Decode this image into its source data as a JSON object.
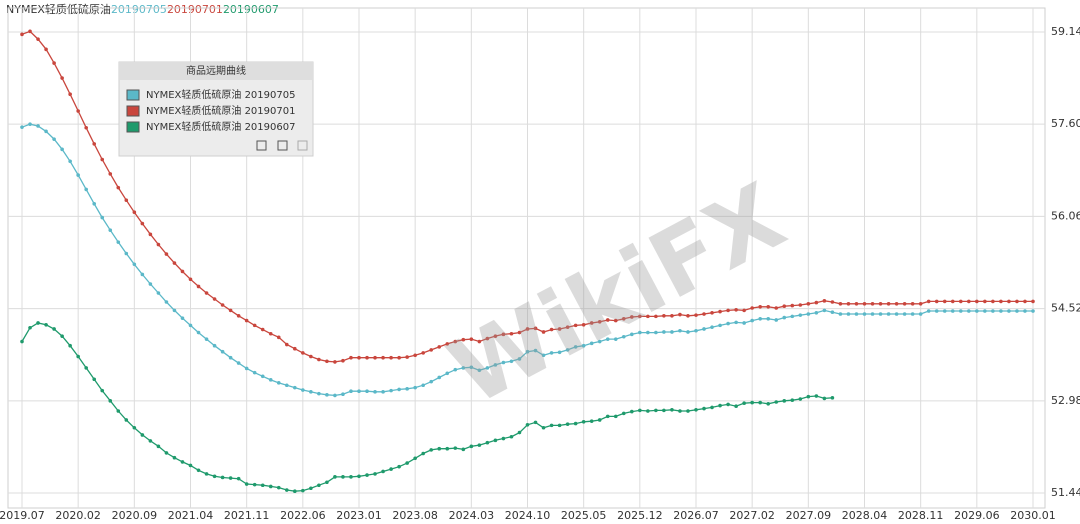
{
  "chart_data": {
    "type": "line",
    "header": {
      "product": "NYMEX轻质低硫原油",
      "dates": [
        "20190705",
        "20190701",
        "20190607"
      ]
    },
    "legend_title": "商品远期曲线",
    "watermark": "WikiFX",
    "categories": [
      "2019.07",
      null,
      null,
      null,
      null,
      null,
      null,
      "2020.02",
      null,
      null,
      null,
      null,
      null,
      null,
      "2020.09",
      null,
      null,
      null,
      null,
      null,
      null,
      "2021.04",
      null,
      null,
      null,
      null,
      null,
      null,
      "2021.11",
      null,
      null,
      null,
      null,
      null,
      null,
      "2022.06",
      null,
      null,
      null,
      null,
      null,
      null,
      "2023.01",
      null,
      null,
      null,
      null,
      null,
      null,
      "2023.08",
      null,
      null,
      null,
      null,
      null,
      null,
      "2024.03",
      null,
      null,
      null,
      null,
      null,
      null,
      "2024.10",
      null,
      null,
      null,
      null,
      null,
      null,
      "2025.05",
      null,
      null,
      null,
      null,
      null,
      null,
      "2025.12",
      null,
      null,
      null,
      null,
      null,
      null,
      "2026.07",
      null,
      null,
      null,
      null,
      null,
      null,
      "2027.02",
      null,
      null,
      null,
      null,
      null,
      null,
      "2027.09",
      null,
      null,
      null,
      null,
      null,
      null,
      "2028.04",
      null,
      null,
      null,
      null,
      null,
      null,
      "2028.11",
      null,
      null,
      null,
      null,
      null,
      null,
      "2029.06",
      null,
      null,
      null,
      null,
      null,
      null,
      "2030.01"
    ],
    "series": [
      {
        "name": "NYMEX轻质低硫原油 20190705",
        "color": "#5bb8c8",
        "values": [
          57.55,
          57.6,
          57.57,
          57.48,
          57.35,
          57.18,
          56.98,
          56.75,
          56.51,
          56.27,
          56.04,
          55.83,
          55.63,
          55.44,
          55.26,
          55.09,
          54.93,
          54.78,
          54.63,
          54.49,
          54.36,
          54.24,
          54.12,
          54.01,
          53.9,
          53.8,
          53.7,
          53.61,
          53.52,
          53.45,
          53.39,
          53.33,
          53.28,
          53.24,
          53.2,
          53.16,
          53.13,
          53.1,
          53.08,
          53.07,
          53.09,
          53.14,
          53.14,
          53.14,
          53.13,
          53.13,
          53.15,
          53.17,
          53.18,
          53.2,
          53.24,
          53.3,
          53.37,
          53.44,
          53.5,
          53.53,
          53.54,
          53.49,
          53.53,
          53.58,
          53.62,
          53.64,
          53.68,
          53.8,
          53.82,
          53.74,
          53.78,
          53.79,
          53.83,
          53.88,
          53.9,
          53.94,
          53.97,
          54.01,
          54.01,
          54.05,
          54.09,
          54.12,
          54.12,
          54.12,
          54.13,
          54.13,
          54.15,
          54.13,
          54.15,
          54.18,
          54.21,
          54.24,
          54.27,
          54.29,
          54.28,
          54.32,
          54.35,
          54.35,
          54.33,
          54.37,
          54.39,
          54.41,
          54.43,
          54.45,
          54.49,
          54.46,
          54.43,
          54.43,
          54.43,
          54.43,
          54.43,
          54.43,
          54.43,
          54.43,
          54.43,
          54.43,
          54.43,
          54.48,
          54.48,
          54.48,
          54.48,
          54.48,
          54.48,
          54.48,
          54.48,
          54.48,
          54.48,
          54.48,
          54.48,
          54.48,
          54.48
        ]
      },
      {
        "name": "NYMEX轻质低硫原油 20190701",
        "color": "#c9463d",
        "values": [
          59.1,
          59.15,
          59.02,
          58.85,
          58.62,
          58.37,
          58.1,
          57.82,
          57.54,
          57.27,
          57.01,
          56.77,
          56.54,
          56.33,
          56.13,
          55.94,
          55.76,
          55.59,
          55.43,
          55.28,
          55.14,
          55.01,
          54.89,
          54.78,
          54.68,
          54.58,
          54.49,
          54.4,
          54.32,
          54.24,
          54.17,
          54.1,
          54.04,
          53.92,
          53.85,
          53.78,
          53.72,
          53.67,
          53.64,
          53.63,
          53.65,
          53.7,
          53.7,
          53.7,
          53.7,
          53.7,
          53.7,
          53.7,
          53.71,
          53.74,
          53.78,
          53.83,
          53.88,
          53.93,
          53.97,
          54.0,
          54.01,
          53.97,
          54.02,
          54.06,
          54.09,
          54.1,
          54.12,
          54.18,
          54.19,
          54.13,
          54.17,
          54.18,
          54.21,
          54.24,
          54.25,
          54.28,
          54.3,
          54.33,
          54.32,
          54.35,
          54.38,
          54.39,
          54.39,
          54.39,
          54.4,
          54.4,
          54.42,
          54.4,
          54.41,
          54.43,
          54.45,
          54.47,
          54.49,
          54.5,
          54.49,
          54.53,
          54.55,
          54.55,
          54.53,
          54.56,
          54.57,
          54.58,
          54.6,
          54.62,
          54.65,
          54.63,
          54.6,
          54.6,
          54.6,
          54.6,
          54.6,
          54.6,
          54.6,
          54.6,
          54.6,
          54.6,
          54.6,
          54.64,
          54.64,
          54.64,
          54.64,
          54.64,
          54.64,
          54.64,
          54.64,
          54.64,
          54.64,
          54.64,
          54.64,
          54.64,
          54.64
        ]
      },
      {
        "name": "NYMEX轻质低硫原油 20190607",
        "color": "#1f9a6c",
        "values": [
          53.97,
          54.2,
          54.28,
          54.25,
          54.18,
          54.06,
          53.9,
          53.72,
          53.53,
          53.34,
          53.15,
          52.98,
          52.81,
          52.66,
          52.53,
          52.41,
          52.31,
          52.22,
          52.11,
          52.03,
          51.96,
          51.9,
          51.82,
          51.76,
          51.72,
          51.7,
          51.69,
          51.68,
          51.59,
          51.58,
          51.57,
          51.55,
          51.53,
          51.49,
          51.47,
          51.48,
          51.52,
          51.57,
          51.62,
          51.71,
          51.71,
          51.71,
          51.72,
          51.74,
          51.76,
          51.8,
          51.84,
          51.88,
          51.94,
          52.02,
          52.1,
          52.16,
          52.18,
          52.18,
          52.19,
          52.17,
          52.22,
          52.24,
          52.28,
          52.32,
          52.35,
          52.38,
          52.45,
          52.58,
          52.62,
          52.53,
          52.57,
          52.57,
          52.59,
          52.6,
          52.63,
          52.64,
          52.66,
          52.72,
          52.72,
          52.77,
          52.8,
          52.82,
          52.81,
          52.82,
          52.82,
          52.83,
          52.81,
          52.81,
          52.83,
          52.85,
          52.87,
          52.9,
          52.92,
          52.89,
          52.94,
          52.95,
          52.95,
          52.93,
          52.96,
          52.98,
          52.99,
          53.01,
          53.05,
          53.06,
          53.02,
          53.03,
          null,
          null,
          null,
          null,
          null,
          null,
          null,
          null,
          null,
          null,
          null,
          null,
          null,
          null,
          null,
          null,
          null,
          null,
          null,
          null,
          null,
          null,
          null,
          null,
          null
        ]
      }
    ],
    "ylim": [
      51.19,
      59.54
    ],
    "yticks": [
      59.14,
      {
        "value": 57.6,
        "label": "57.60"
      },
      56.06,
      54.52,
      52.98,
      51.44
    ],
    "grid": true
  }
}
